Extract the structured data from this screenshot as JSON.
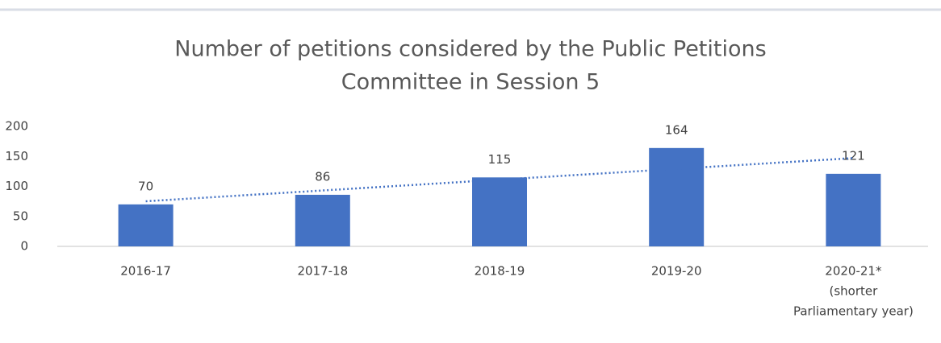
{
  "chart_data": {
    "type": "bar",
    "title": [
      "Number of petitions considered by the Public Petitions",
      "Committee in Session 5"
    ],
    "categories": [
      [
        "2016-17"
      ],
      [
        "2017-18"
      ],
      [
        "2018-19"
      ],
      [
        "2019-20"
      ],
      [
        "2020-21*",
        "(shorter",
        "Parliamentary year)"
      ]
    ],
    "values": [
      70,
      86,
      115,
      164,
      121
    ],
    "color": "#4472c4",
    "ylim": [
      0,
      200
    ],
    "yticks": [
      0,
      50,
      100,
      150,
      200
    ],
    "grid": false,
    "trendline": "linear",
    "trendline_color": "#4472c4"
  }
}
